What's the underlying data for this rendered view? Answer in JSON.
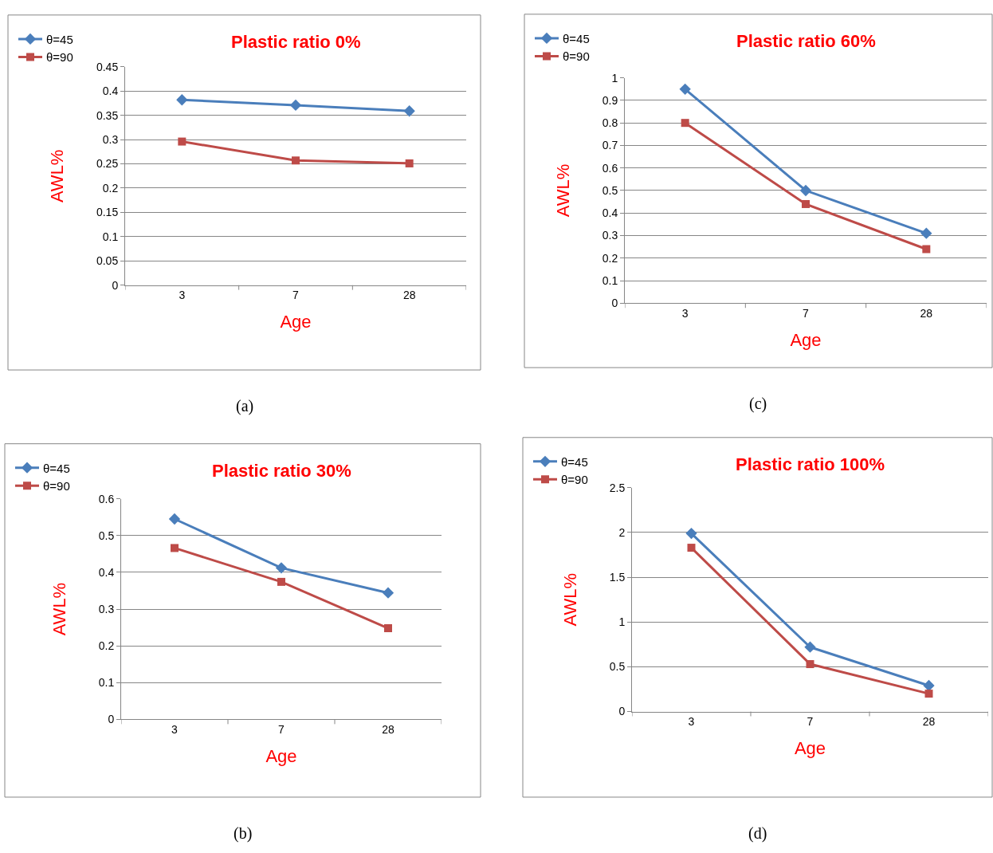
{
  "chart_data": [
    {
      "type": "line",
      "title": "Plastic ratio 0%",
      "xlabel": "Age",
      "ylabel": "AWL%",
      "categories": [
        "3",
        "7",
        "28"
      ],
      "ylim": [
        0,
        0.45
      ],
      "yticks": [
        0,
        0.05,
        0.1,
        0.15,
        0.2,
        0.25,
        0.3,
        0.35,
        0.4,
        0.45
      ],
      "grid": "y",
      "legend": "top left",
      "annotations": [
        "(a)"
      ],
      "series": [
        {
          "name": "θ=45",
          "color": "#4a7ebb",
          "marker": "diamond",
          "values": [
            0.382,
            0.371,
            0.359
          ]
        },
        {
          "name": "θ=90",
          "color": "#be4b48",
          "marker": "square",
          "values": [
            0.296,
            0.257,
            0.251
          ]
        }
      ]
    },
    {
      "type": "line",
      "title": "Plastic ratio 60%",
      "xlabel": "Age",
      "ylabel": "AWL%",
      "categories": [
        "3",
        "7",
        "28"
      ],
      "ylim": [
        0,
        1
      ],
      "yticks": [
        0,
        0.1,
        0.2,
        0.3,
        0.4,
        0.5,
        0.6,
        0.7,
        0.8,
        0.9,
        1
      ],
      "grid": "y",
      "legend": "top left",
      "annotations": [
        "(c)"
      ],
      "series": [
        {
          "name": "θ=45",
          "color": "#4a7ebb",
          "marker": "diamond",
          "values": [
            0.95,
            0.5,
            0.31
          ]
        },
        {
          "name": "θ=90",
          "color": "#be4b48",
          "marker": "square",
          "values": [
            0.8,
            0.44,
            0.24
          ]
        }
      ]
    },
    {
      "type": "line",
      "title": "Plastic ratio 30%",
      "xlabel": "Age",
      "ylabel": "AWL%",
      "categories": [
        "3",
        "7",
        "28"
      ],
      "ylim": [
        0,
        0.6
      ],
      "yticks": [
        0,
        0.1,
        0.2,
        0.3,
        0.4,
        0.5,
        0.6
      ],
      "grid": "y",
      "legend": "top left",
      "annotations": [
        "(b)"
      ],
      "series": [
        {
          "name": "θ=45",
          "color": "#4a7ebb",
          "marker": "diamond",
          "values": [
            0.545,
            0.412,
            0.344
          ]
        },
        {
          "name": "θ=90",
          "color": "#be4b48",
          "marker": "square",
          "values": [
            0.466,
            0.374,
            0.248
          ]
        }
      ]
    },
    {
      "type": "line",
      "title": "Plastic ratio 100%",
      "xlabel": "Age",
      "ylabel": "AWL%",
      "categories": [
        "3",
        "7",
        "28"
      ],
      "ylim": [
        0,
        2.5
      ],
      "yticks": [
        0,
        0.5,
        1,
        1.5,
        2,
        2.5
      ],
      "grid": "y",
      "legend": "top left",
      "annotations": [
        "(d)"
      ],
      "series": [
        {
          "name": "θ=45",
          "color": "#4a7ebb",
          "marker": "diamond",
          "values": [
            1.99,
            0.72,
            0.29
          ]
        },
        {
          "name": "θ=90",
          "color": "#be4b48",
          "marker": "square",
          "values": [
            1.83,
            0.53,
            0.2
          ]
        }
      ]
    }
  ]
}
